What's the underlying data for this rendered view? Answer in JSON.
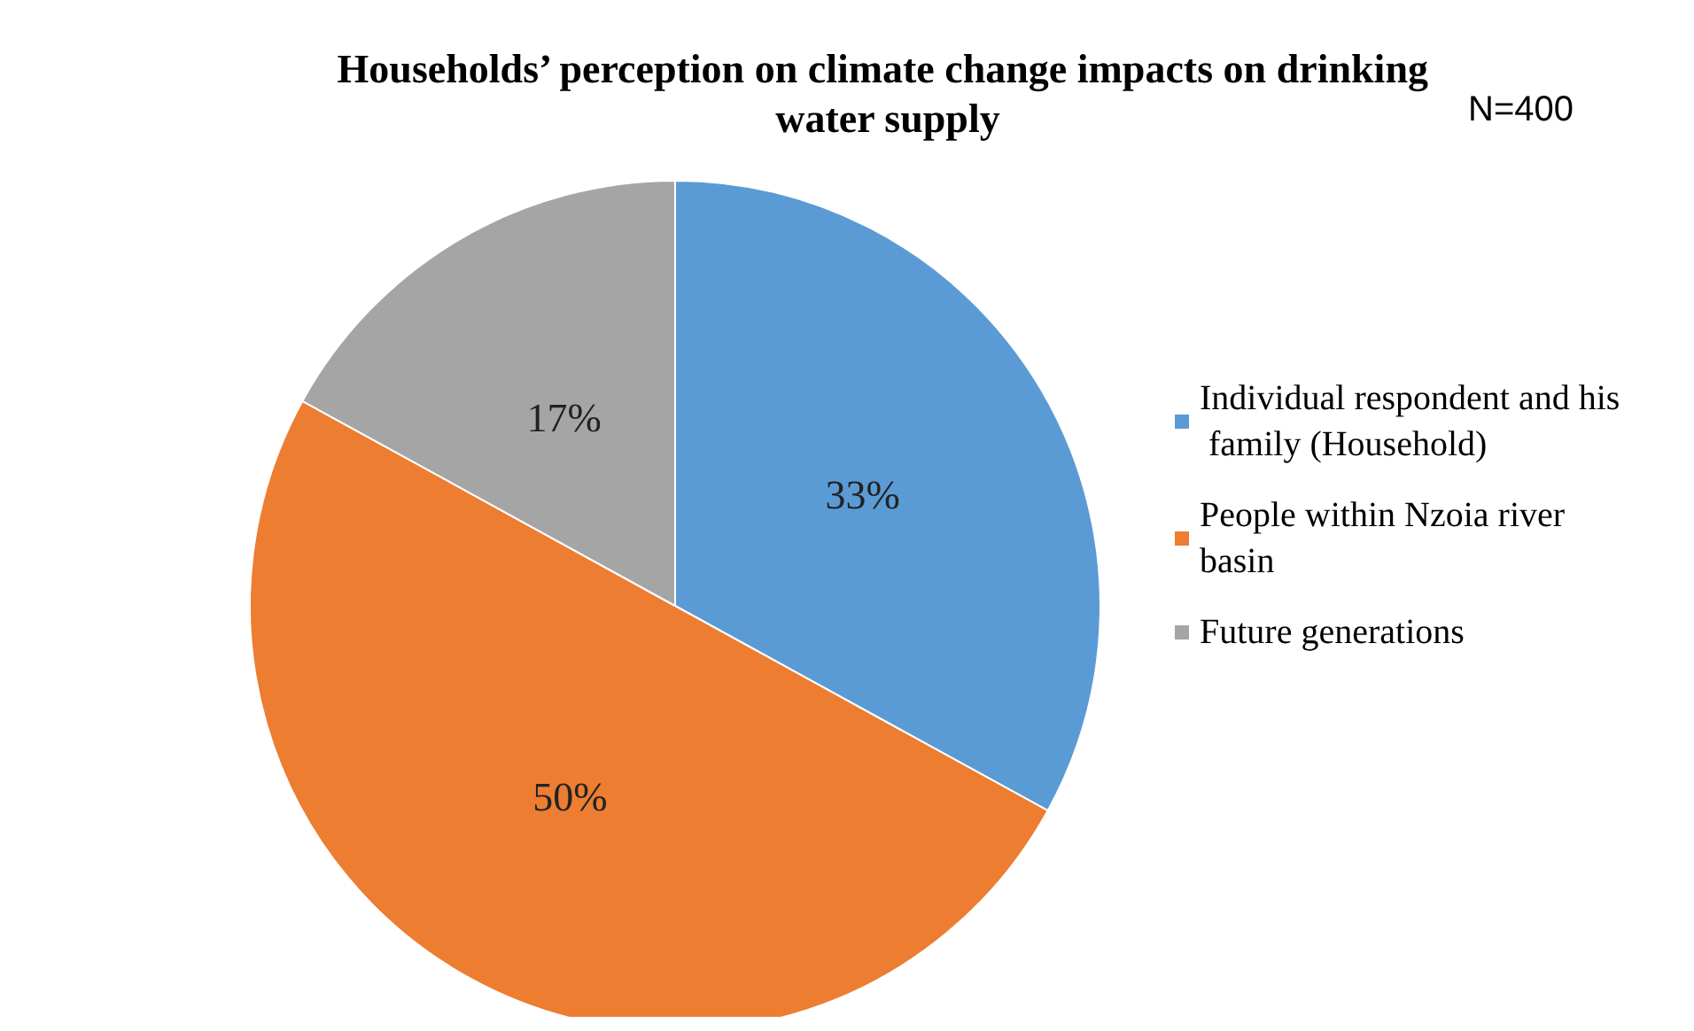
{
  "chart_data": {
    "type": "pie",
    "title": "Households’ perception on climate change impacts on drinking water supply",
    "annotations": [
      "N=400"
    ],
    "categories": [
      "Individual respondent and his family (Household)",
      "People within Nzoia river basin",
      "Future generations"
    ],
    "values": [
      33,
      50,
      17
    ],
    "colors": [
      "#5b9bd5",
      "#ed7d31",
      "#a5a5a5"
    ],
    "value_labels": [
      "33%",
      "50%",
      "17%"
    ],
    "legend": "right"
  }
}
